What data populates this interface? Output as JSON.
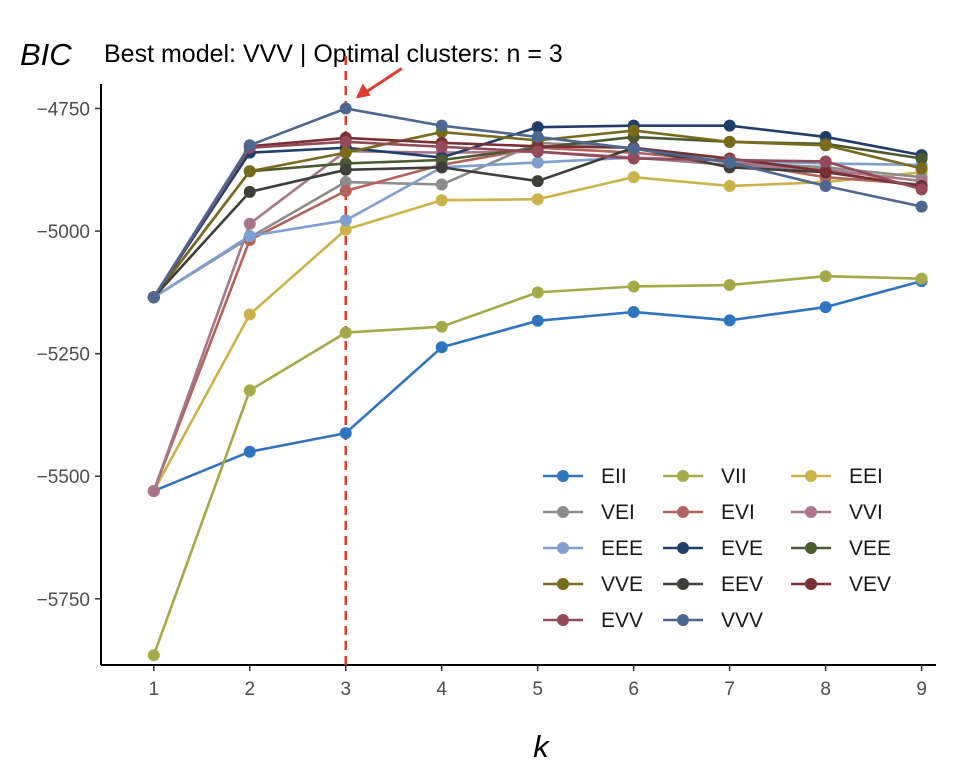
{
  "chart_data": {
    "type": "line",
    "title": "Best model: VVV | Optimal clusters: n = 3",
    "xlabel": "k",
    "ylabel": "BIC",
    "x": [
      1,
      2,
      3,
      4,
      5,
      6,
      7,
      8,
      9
    ],
    "xlim": [
      0.45,
      9.15
    ],
    "ylim": [
      -5885,
      -4700
    ],
    "yticks": [
      -4750,
      -5000,
      -5250,
      -5500,
      -5750
    ],
    "ytick_labels": [
      "−4750",
      "−5000",
      "−5250",
      "−5500",
      "−5750"
    ],
    "xtick_labels": [
      "1",
      "2",
      "3",
      "4",
      "5",
      "6",
      "7",
      "8",
      "9"
    ],
    "grid": false,
    "legend_position": "bottom-right",
    "optimal_k": 3,
    "optimal_line_color": "#e03b2e",
    "series": [
      {
        "name": "EII",
        "color": "#2f74c0",
        "values": [
          -5530,
          -5450,
          -5412,
          -5237,
          -5183,
          -5165,
          -5182,
          -5155,
          -5102
        ]
      },
      {
        "name": "VII",
        "color": "#a6a948",
        "values": [
          -5865,
          -5325,
          -5207,
          -5195,
          -5125,
          -5113,
          -5110,
          -5092,
          -5097
        ]
      },
      {
        "name": "EEI",
        "color": "#cbb24a",
        "values": [
          -5530,
          -5170,
          -4997,
          -4937,
          -4935,
          -4890,
          -4908,
          -4900,
          -4880
        ]
      },
      {
        "name": "VEI",
        "color": "#8c8c8c",
        "values": [
          -5135,
          -5013,
          -4900,
          -4905,
          -4820,
          -4830,
          -4860,
          -4870,
          -4890
        ]
      },
      {
        "name": "EVI",
        "color": "#b5625a",
        "values": [
          -5530,
          -5018,
          -4918,
          -4865,
          -4830,
          -4840,
          -4858,
          -4890,
          -4905
        ]
      },
      {
        "name": "VVI",
        "color": "#a7768a",
        "values": [
          -5530,
          -4985,
          -4837,
          -4840,
          -4838,
          -4850,
          -4865,
          -4875,
          -4898
        ]
      },
      {
        "name": "EEE",
        "color": "#7f9fd0",
        "values": [
          -5135,
          -5010,
          -4978,
          -4870,
          -4860,
          -4850,
          -4857,
          -4862,
          -4865
        ]
      },
      {
        "name": "EVE",
        "color": "#1f3f6a",
        "values": [
          -5135,
          -4840,
          -4830,
          -4850,
          -4788,
          -4785,
          -4785,
          -4808,
          -4845
        ]
      },
      {
        "name": "VEE",
        "color": "#4b5a30",
        "values": [
          -5135,
          -4878,
          -4862,
          -4855,
          -4830,
          -4808,
          -4818,
          -4822,
          -4852
        ]
      },
      {
        "name": "VVE",
        "color": "#7a6b1c",
        "values": [
          -5135,
          -4878,
          -4840,
          -4798,
          -4815,
          -4795,
          -4818,
          -4825,
          -4872
        ]
      },
      {
        "name": "EEV",
        "color": "#3e3e3a",
        "values": [
          -5135,
          -4920,
          -4875,
          -4870,
          -4898,
          -4830,
          -4870,
          -4880,
          -4908
        ]
      },
      {
        "name": "VEV",
        "color": "#7a2f33",
        "values": [
          -5135,
          -4827,
          -4810,
          -4820,
          -4827,
          -4830,
          -4852,
          -4878,
          -4910
        ]
      },
      {
        "name": "EVV",
        "color": "#944a58",
        "values": [
          -5135,
          -4830,
          -4818,
          -4828,
          -4838,
          -4852,
          -4855,
          -4858,
          -4915
        ]
      },
      {
        "name": "VVV",
        "color": "#4d6890",
        "values": [
          -5135,
          -4825,
          -4750,
          -4785,
          -4808,
          -4832,
          -4860,
          -4908,
          -4950
        ]
      }
    ]
  }
}
